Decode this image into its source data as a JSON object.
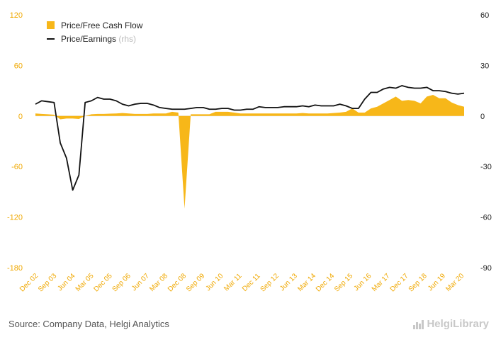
{
  "chart_data": {
    "type": "area+line",
    "source": "Source: Company Data, Helgi Analytics",
    "brand": "HelgiLibrary",
    "colors": {
      "area": "#f7b719",
      "line": "#111111",
      "axis_left": "#f0a800",
      "axis_right": "#222222"
    },
    "legend": [
      {
        "name": "Price/Free Cash Flow",
        "suffix": ""
      },
      {
        "name": "Price/Earnings",
        "suffix": " (rhs)"
      }
    ],
    "y_left": {
      "min": -180,
      "max": 120,
      "ticks": [
        120,
        60,
        0,
        -60,
        -120,
        -180
      ]
    },
    "y_right": {
      "min": -90,
      "max": 60,
      "ticks": [
        60,
        30,
        0,
        -30,
        -60,
        -90
      ]
    },
    "x_tick_labels": [
      "Dec 02",
      "Sep 03",
      "Jun 04",
      "Mar 05",
      "Dec 05",
      "Sep 06",
      "Jun 07",
      "Mar 08",
      "Dec 08",
      "Sep 09",
      "Jun 10",
      "Mar 11",
      "Dec 11",
      "Sep 12",
      "Jun 13",
      "Mar 14",
      "Dec 14",
      "Sep 15",
      "Jun 16",
      "Mar 17",
      "Dec 17",
      "Sep 18",
      "Jun 19",
      "Mar 20"
    ],
    "period_count": 70,
    "series": [
      {
        "name": "Price/Free Cash Flow",
        "axis": "left",
        "values": [
          3,
          2.5,
          2,
          1.5,
          -4,
          -3,
          -3,
          -3.5,
          0,
          2,
          2.5,
          2.5,
          2.8,
          3,
          3.5,
          3,
          2.5,
          2.5,
          2.5,
          3,
          3,
          3,
          5,
          4,
          -110,
          2,
          2,
          2,
          2,
          5,
          5,
          5,
          4,
          3,
          3,
          3,
          3,
          3,
          3,
          3,
          3,
          3,
          3,
          3.5,
          3,
          3,
          3,
          3,
          3.5,
          4,
          5,
          9,
          4,
          4,
          9,
          11,
          15,
          19,
          23,
          18,
          19,
          18,
          15,
          23,
          25,
          21,
          21,
          16,
          13,
          11
        ]
      },
      {
        "name": "Price/Earnings",
        "axis": "right",
        "values": [
          7,
          9,
          8.5,
          8,
          -16,
          -25,
          -44,
          -35,
          8,
          9,
          11,
          10,
          10,
          9,
          7,
          6,
          7,
          7.5,
          7.5,
          6.5,
          5,
          4.5,
          4,
          4,
          4,
          4.5,
          5,
          5,
          4,
          4,
          4.5,
          4.5,
          3.5,
          3.5,
          4,
          4,
          5.5,
          5,
          5,
          5,
          5.5,
          5.5,
          5.5,
          6,
          5.5,
          6.5,
          6,
          6,
          6,
          7,
          6,
          4.5,
          4.5,
          10,
          14,
          14,
          16,
          17,
          16.5,
          18,
          17,
          16.5,
          16.5,
          17,
          15,
          15,
          14.5,
          13.5,
          13,
          13.5
        ]
      }
    ]
  }
}
